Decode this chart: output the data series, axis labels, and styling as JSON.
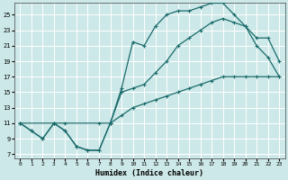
{
  "xlabel": "Humidex (Indice chaleur)",
  "bg_color": "#cde8e8",
  "line_color": "#1a6b6b",
  "grid_color": "#b0d8d8",
  "xlim": [
    -0.5,
    23.5
  ],
  "ylim": [
    6.5,
    26.5
  ],
  "xticks": [
    0,
    1,
    2,
    3,
    4,
    5,
    6,
    7,
    8,
    9,
    10,
    11,
    12,
    13,
    14,
    15,
    16,
    17,
    18,
    19,
    20,
    21,
    22,
    23
  ],
  "yticks": [
    7,
    9,
    11,
    13,
    15,
    17,
    19,
    21,
    23,
    25
  ],
  "line1_x": [
    0,
    1,
    2,
    3,
    4,
    5,
    6,
    7,
    8,
    9,
    10,
    11,
    12,
    13,
    14,
    15,
    16,
    17,
    18,
    19,
    20,
    21,
    22,
    23
  ],
  "line1_y": [
    11,
    10,
    9,
    11,
    10,
    8,
    7.5,
    7.5,
    11,
    15.5,
    21.5,
    21,
    23.5,
    25,
    25.5,
    25.5,
    26,
    26.5,
    26.5,
    25,
    23.5,
    21,
    19.5,
    17
  ],
  "line2_x": [
    0,
    3,
    4,
    7,
    8,
    9,
    10,
    11,
    12,
    13,
    14,
    15,
    16,
    17,
    18,
    19,
    20,
    21,
    22,
    23
  ],
  "line2_y": [
    11,
    11,
    11,
    11,
    11,
    15,
    15.5,
    16,
    17.5,
    19,
    21,
    22,
    23,
    24,
    24.5,
    24,
    23.5,
    22,
    22,
    19
  ],
  "line3_x": [
    0,
    1,
    2,
    3,
    4,
    5,
    6,
    7,
    8,
    9,
    10,
    11,
    12,
    13,
    14,
    15,
    16,
    17,
    18,
    19,
    20,
    21,
    22,
    23
  ],
  "line3_y": [
    11,
    10,
    9,
    11,
    10,
    8,
    7.5,
    7.5,
    11,
    12,
    13,
    13.5,
    14,
    14.5,
    15,
    15.5,
    16,
    16.5,
    17,
    17,
    17,
    17,
    17,
    17
  ]
}
